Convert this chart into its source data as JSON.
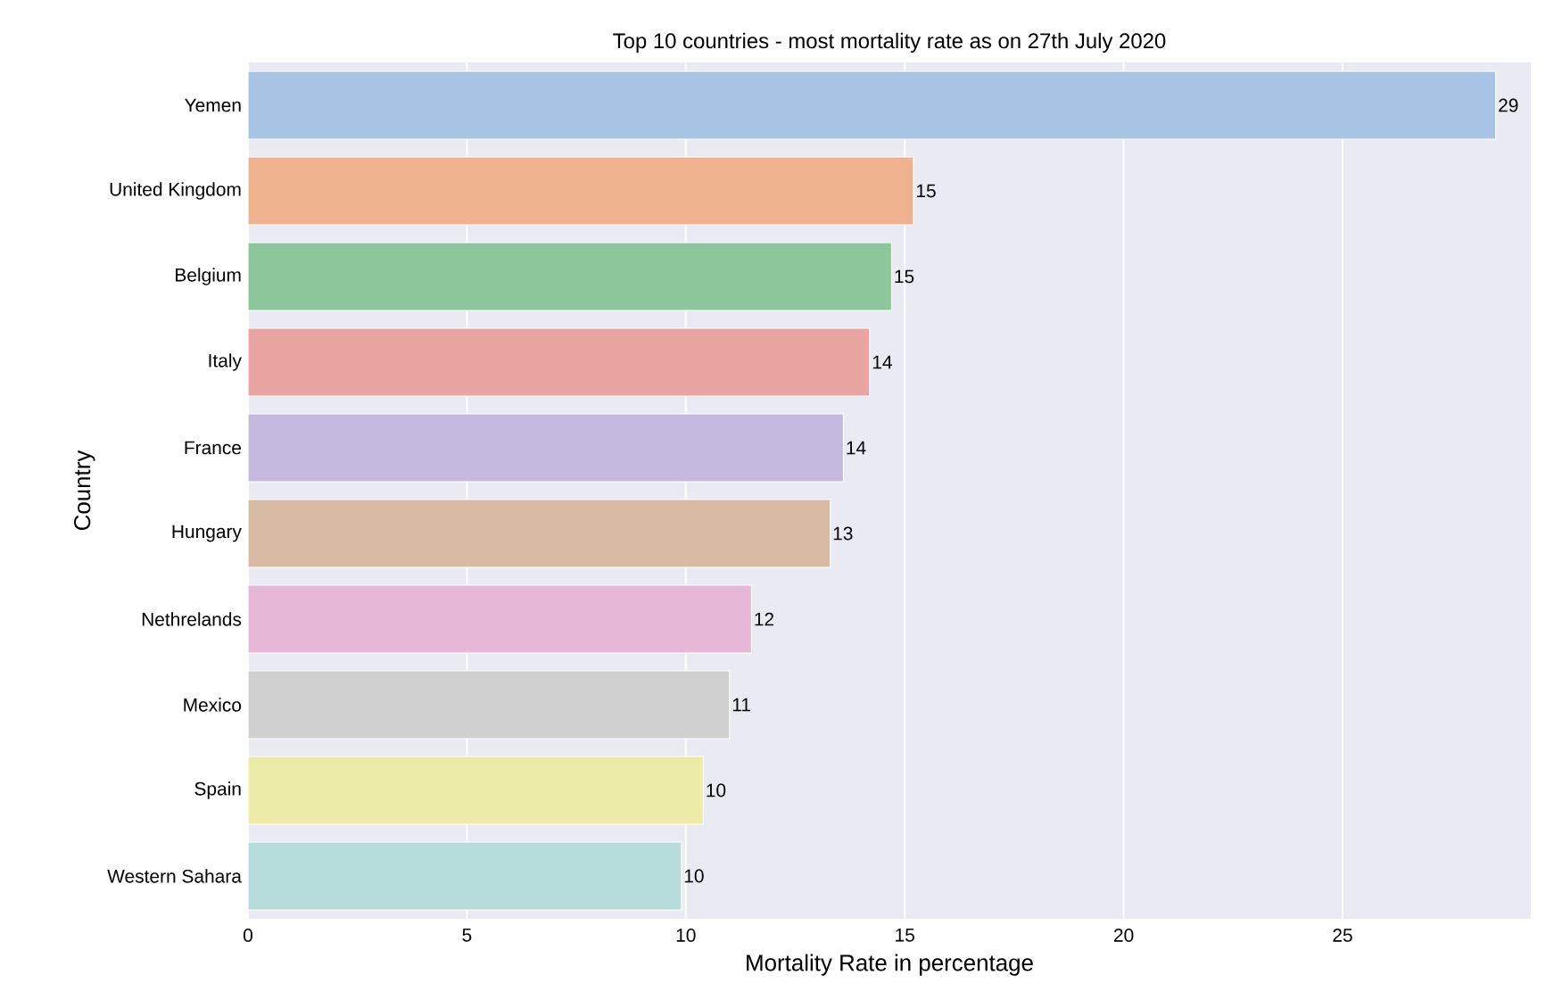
{
  "chart_data": {
    "type": "bar",
    "orientation": "horizontal",
    "title": "Top 10 countries - most mortality rate as on 27th July 2020",
    "xlabel": "Mortality Rate in percentage",
    "ylabel": "Country",
    "categories": [
      "Yemen",
      "United Kingdom",
      "Belgium",
      "Italy",
      "France",
      "Hungary",
      "Nethrelands",
      "Mexico",
      "Spain",
      "Western Sahara"
    ],
    "values": [
      28.5,
      15.2,
      14.7,
      14.2,
      13.6,
      13.3,
      11.5,
      11.0,
      10.4,
      9.9
    ],
    "value_labels": [
      "29",
      "15",
      "15",
      "14",
      "14",
      "13",
      "12",
      "11",
      "10",
      "10"
    ],
    "colors": [
      "#a8c4e4",
      "#eeb28e",
      "#8cc79b",
      "#e9a5a2",
      "#c4b8dc",
      "#d6bba2",
      "#e6b7d6",
      "#d0d0d0",
      "#ececa8",
      "#b6dcdc"
    ],
    "xlim": [
      0,
      29.3
    ],
    "xticks": [
      0,
      5,
      10,
      15,
      20,
      25
    ],
    "grid": "x"
  }
}
